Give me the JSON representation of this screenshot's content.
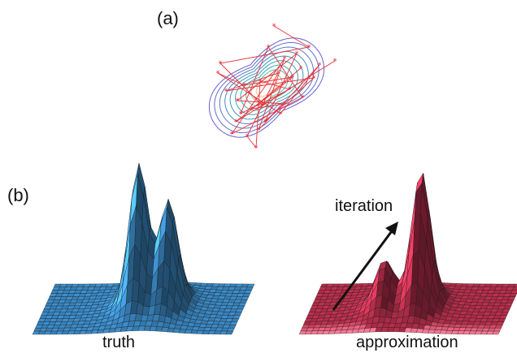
{
  "panel_a": {
    "label": "(a)"
  },
  "panel_b": {
    "label": "(b)"
  },
  "surfaces": {
    "truth": {
      "caption": "truth",
      "color": "#3d8fce"
    },
    "approximation": {
      "caption": "approximation",
      "color": "#c0304e",
      "arrow_label": "iteration"
    }
  },
  "colors": {
    "contour_outer": "#6b5fd0",
    "contour_inner": "#2bb5b0",
    "contour_core": "#f4c28a",
    "trajectory": "#e8303a",
    "mesh_line": "#1a1a1a",
    "arrow": "#111111"
  }
}
